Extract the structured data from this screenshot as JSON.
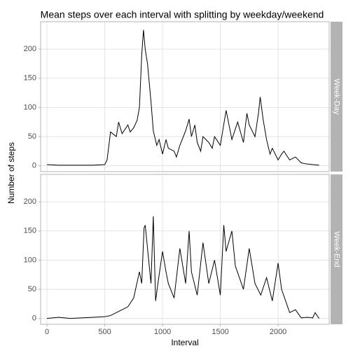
{
  "chart_data": {
    "type": "line",
    "title": "Mean steps over each interval with splitting by weekday/weekend",
    "xlabel": "Interval",
    "ylabel": "Number of steps",
    "xlim": [
      -55,
      2442
    ],
    "xticks": [
      0,
      500,
      1000,
      1500,
      2000
    ],
    "ylim": [
      -10,
      247
    ],
    "yticks": [
      0,
      50,
      100,
      150,
      200
    ],
    "grid": true,
    "series": [
      {
        "name": "Week-Day",
        "color": "#000000",
        "x": [
          0,
          100,
          200,
          300,
          400,
          500,
          520,
          550,
          600,
          620,
          650,
          700,
          720,
          750,
          780,
          800,
          820,
          835,
          850,
          870,
          900,
          920,
          950,
          970,
          1000,
          1030,
          1050,
          1100,
          1120,
          1150,
          1200,
          1230,
          1250,
          1280,
          1300,
          1330,
          1350,
          1400,
          1430,
          1450,
          1500,
          1550,
          1600,
          1650,
          1700,
          1730,
          1750,
          1800,
          1830,
          1845,
          1870,
          1900,
          1930,
          1950,
          2000,
          2030,
          2050,
          2100,
          2150,
          2200,
          2250,
          2300,
          2355
        ],
        "values": [
          2,
          1,
          1,
          1,
          1,
          2,
          10,
          58,
          50,
          75,
          55,
          70,
          58,
          65,
          78,
          100,
          190,
          233,
          200,
          175,
          110,
          60,
          35,
          45,
          20,
          45,
          30,
          25,
          15,
          35,
          60,
          80,
          50,
          70,
          40,
          25,
          50,
          40,
          30,
          50,
          35,
          95,
          45,
          75,
          40,
          90,
          70,
          50,
          90,
          118,
          80,
          45,
          20,
          30,
          10,
          20,
          25,
          10,
          15,
          5,
          3,
          2,
          1
        ]
      },
      {
        "name": "Week-End",
        "color": "#000000",
        "x": [
          0,
          100,
          200,
          300,
          400,
          500,
          550,
          600,
          650,
          700,
          750,
          800,
          820,
          840,
          850,
          870,
          900,
          920,
          940,
          960,
          1000,
          1030,
          1050,
          1100,
          1150,
          1200,
          1230,
          1250,
          1300,
          1350,
          1400,
          1450,
          1500,
          1530,
          1550,
          1600,
          1630,
          1700,
          1750,
          1800,
          1850,
          1900,
          1950,
          2000,
          2030,
          2100,
          2150,
          2200,
          2250,
          2300,
          2320,
          2355
        ],
        "values": [
          0,
          2,
          0,
          1,
          2,
          3,
          5,
          10,
          15,
          20,
          35,
          80,
          60,
          155,
          160,
          120,
          60,
          175,
          30,
          60,
          115,
          80,
          60,
          35,
          120,
          60,
          150,
          80,
          40,
          130,
          60,
          100,
          40,
          160,
          115,
          150,
          90,
          50,
          120,
          60,
          40,
          70,
          30,
          95,
          50,
          10,
          15,
          1,
          2,
          1,
          10,
          0
        ]
      }
    ]
  }
}
